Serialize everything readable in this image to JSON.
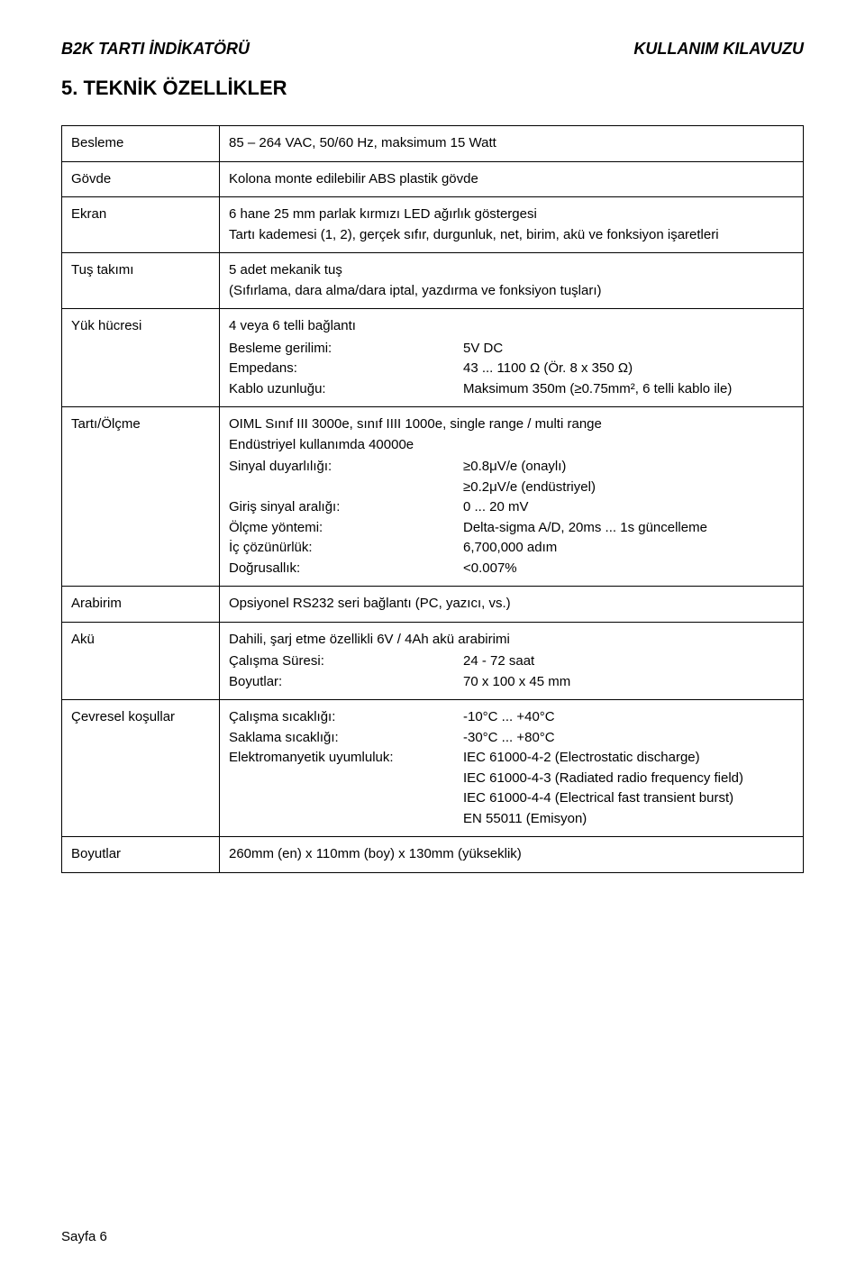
{
  "header": {
    "left": "B2K TARTI İNDİKATÖRÜ",
    "right": "KULLANIM KILAVUZU"
  },
  "section_title": "5.  TEKNİK ÖZELLİKLER",
  "rows": {
    "besleme": {
      "label": "Besleme",
      "value": "85 – 264 VAC, 50/60 Hz, maksimum 15 Watt"
    },
    "govde": {
      "label": "Gövde",
      "value": "Kolona monte edilebilir ABS plastik gövde"
    },
    "ekran": {
      "label": "Ekran",
      "line1": "6 hane 25 mm parlak kırmızı LED ağırlık göstergesi",
      "line2": "Tartı kademesi (1, 2), gerçek sıfır, durgunluk, net, birim, akü ve fonksiyon işaretleri"
    },
    "tus": {
      "label": "Tuş takımı",
      "line1": "5 adet mekanik tuş",
      "line2": "(Sıfırlama, dara alma/dara iptal, yazdırma ve fonksiyon tuşları)"
    },
    "yuk": {
      "label": "Yük hücresi",
      "top": "4 veya 6 telli bağlantı",
      "pairs": [
        {
          "k": "Besleme gerilimi:",
          "v": "5V DC"
        },
        {
          "k": "Empedans:",
          "v": "43 ... 1100 Ω (Ör. 8 x 350 Ω)"
        },
        {
          "k": "Kablo uzunluğu:",
          "v": "Maksimum 350m (≥0.75mm², 6 telli kablo ile)"
        }
      ]
    },
    "tarti": {
      "label": "Tartı/Ölçme",
      "top1": "OIML Sınıf III 3000e, sınıf IIII 1000e, single range / multi range",
      "top2": "Endüstriyel kullanımda 40000e",
      "pairs": [
        {
          "k": "Sinyal duyarlılığı:",
          "v": "≥0.8μV/e (onaylı)"
        },
        {
          "k": "",
          "v": "≥0.2μV/e (endüstriyel)"
        },
        {
          "k": "Giriş sinyal aralığı:",
          "v": "0 ... 20 mV"
        },
        {
          "k": "Ölçme yöntemi:",
          "v": "Delta-sigma A/D, 20ms ... 1s güncelleme"
        },
        {
          "k": "İç çözünürlük:",
          "v": "6,700,000 adım"
        },
        {
          "k": "Doğrusallık:",
          "v": "<0.007%"
        }
      ]
    },
    "arabirim": {
      "label": "Arabirim",
      "value": "Opsiyonel RS232 seri bağlantı (PC, yazıcı, vs.)"
    },
    "aku": {
      "label": "Akü",
      "top": "Dahili, şarj etme özellikli 6V / 4Ah akü arabirimi",
      "pairs": [
        {
          "k": "Çalışma Süresi:",
          "v": "24 - 72 saat"
        },
        {
          "k": "Boyutlar:",
          "v": "70 x 100 x 45 mm"
        }
      ]
    },
    "cevre": {
      "label": "Çevresel koşullar",
      "pairs": [
        {
          "k": "Çalışma sıcaklığı:",
          "v": "-10°C ... +40°C"
        },
        {
          "k": "Saklama sıcaklığı:",
          "v": "-30°C ... +80°C"
        },
        {
          "k": "Elektromanyetik uyumluluk:",
          "v": "IEC 61000-4-2 (Electrostatic discharge)"
        },
        {
          "k": "",
          "v": "IEC 61000-4-3 (Radiated radio frequency field)"
        },
        {
          "k": "",
          "v": "IEC 61000-4-4 (Electrical fast transient burst)"
        },
        {
          "k": "",
          "v": "EN 55011 (Emisyon)"
        }
      ]
    },
    "boyutlar": {
      "label": "Boyutlar",
      "value": "260mm (en) x 110mm (boy) x 130mm (yükseklik)"
    }
  },
  "footer": "Sayfa 6"
}
